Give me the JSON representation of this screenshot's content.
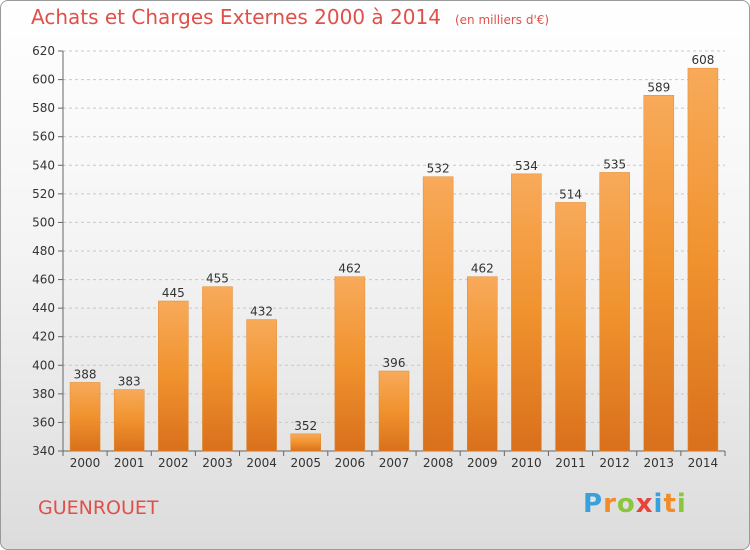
{
  "header": {
    "title": "Achats et Charges Externes 2000 à 2014",
    "unit": "(en milliers d'€)"
  },
  "commune": "GUENROUET",
  "logo": {
    "text": "Proxiti",
    "letters": [
      {
        "char": "P",
        "color": "#3aa0dc"
      },
      {
        "char": "r",
        "color": "#f28c28"
      },
      {
        "char": "o",
        "color": "#8cc63f"
      },
      {
        "char": "x",
        "color": "#e8423a"
      },
      {
        "char": "i",
        "color": "#3aa0dc"
      },
      {
        "char": "t",
        "color": "#f28c28"
      },
      {
        "char": "i",
        "color": "#8cc63f"
      }
    ]
  },
  "chart_data": {
    "type": "bar",
    "title": "Achats et Charges Externes 2000 à 2014",
    "subtitle": "(en milliers d'€)",
    "xlabel": "",
    "ylabel": "",
    "categories": [
      "2000",
      "2001",
      "2002",
      "2003",
      "2004",
      "2005",
      "2006",
      "2007",
      "2008",
      "2009",
      "2010",
      "2011",
      "2012",
      "2013",
      "2014"
    ],
    "values": [
      388,
      383,
      445,
      455,
      432,
      352,
      462,
      396,
      532,
      462,
      534,
      514,
      535,
      589,
      608
    ],
    "ylim": [
      340,
      620
    ],
    "yticks": [
      340,
      360,
      380,
      400,
      420,
      440,
      460,
      480,
      500,
      520,
      540,
      560,
      580,
      600,
      620
    ],
    "grid": true,
    "bar_color": "#f0922e",
    "bar_color_light": "#f8aa5a",
    "bar_color_dark": "#d9701c",
    "legend": "none"
  }
}
